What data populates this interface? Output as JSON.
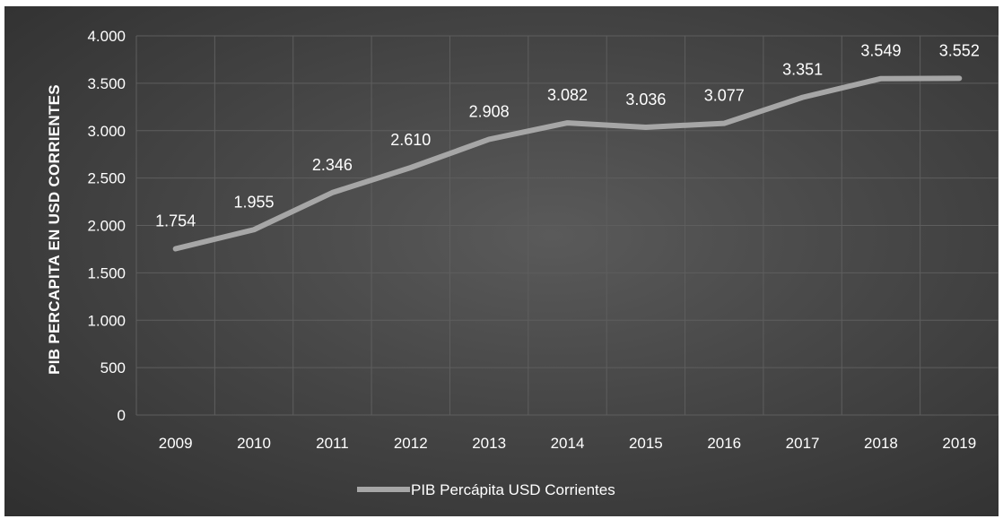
{
  "chart_data": {
    "type": "line",
    "categories": [
      "2009",
      "2010",
      "2011",
      "2012",
      "2013",
      "2014",
      "2015",
      "2016",
      "2017",
      "2018",
      "2019"
    ],
    "series": [
      {
        "name": "PIB Percápita USD Corrientes",
        "values": [
          1754,
          1955,
          2346,
          2610,
          2908,
          3082,
          3036,
          3077,
          3351,
          3549,
          3552
        ],
        "labels": [
          "1.754",
          "1.955",
          "2.346",
          "2.610",
          "2.908",
          "3.082",
          "3.036",
          "3.077",
          "3.351",
          "3.549",
          "3.552"
        ],
        "color": "#a6a6a6"
      }
    ],
    "ylabel": "PIB PERCAPITA EN USD CORRIENTES",
    "xlabel": "",
    "ylim": [
      0,
      4000
    ],
    "yticks": [
      0,
      500,
      1000,
      1500,
      2000,
      2500,
      3000,
      3500,
      4000
    ],
    "ytick_labels": [
      "0",
      "500",
      "1.000",
      "1.500",
      "2.000",
      "2.500",
      "3.000",
      "3.500",
      "4.000"
    ],
    "grid": true,
    "legend_position": "bottom",
    "background": "#464646",
    "gridline_color": "#5e5e5e"
  }
}
